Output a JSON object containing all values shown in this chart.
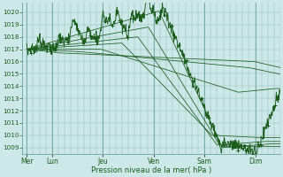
{
  "background_color": "#cce8e8",
  "plot_bg_color": "#cce8e8",
  "grid_color": "#99bbbb",
  "line_color": "#1a5c1a",
  "ylim": [
    1008.5,
    1020.8
  ],
  "yticks": [
    1009,
    1010,
    1011,
    1012,
    1013,
    1014,
    1015,
    1016,
    1017,
    1018,
    1019,
    1020
  ],
  "xlabel": "Pression niveau de la mer( hPa )",
  "xlabel_color": "#1a5c1a",
  "day_labels": [
    "Mer",
    "Lun",
    "Jeu",
    "Ven",
    "Sam",
    "Dim"
  ],
  "day_positions": [
    0,
    24,
    72,
    120,
    168,
    216
  ],
  "xlim": [
    -4,
    240
  ]
}
